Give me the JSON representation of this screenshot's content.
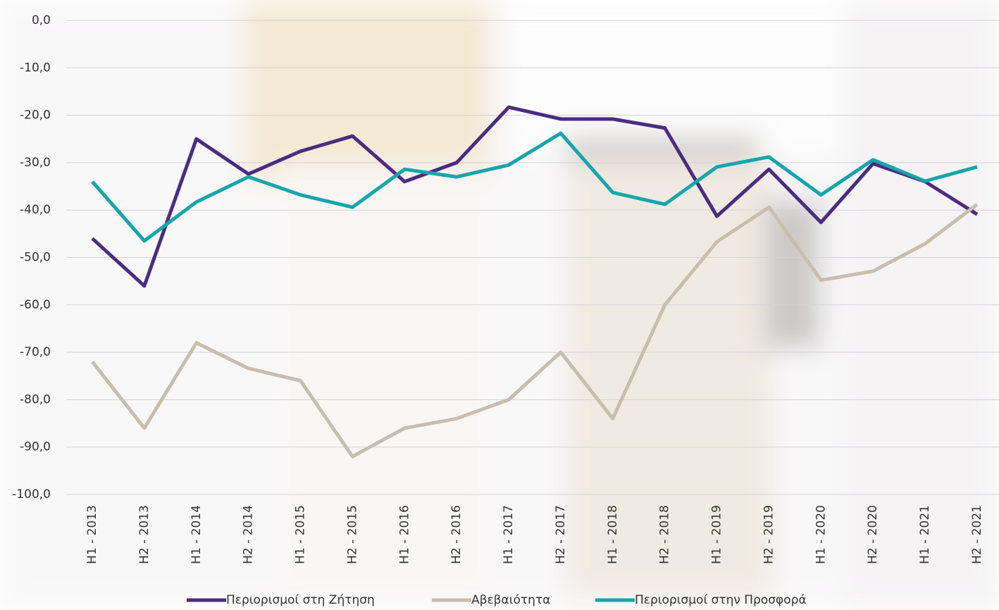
{
  "chart_data": {
    "type": "line",
    "categories": [
      "H1 - 2013",
      "H2 - 2013",
      "H1 - 2014",
      "H2 - 2014",
      "H1 - 2015",
      "H2 - 2015",
      "H1 - 2016",
      "H2 - 2016",
      "H1 - 2017",
      "H2 - 2017",
      "H1 - 2018",
      "H2 - 2018",
      "H1 - 2019",
      "H2 - 2019",
      "H1 - 2020",
      "H2 - 2020",
      "H1 - 2021",
      "H2 - 2021"
    ],
    "series": [
      {
        "name": "Περιορισμοί στη Ζήτηση",
        "color": "#4b2c7f",
        "values": [
          -46,
          -56,
          -25,
          -32.4,
          -27.6,
          -24.4,
          -34,
          -30,
          -18.3,
          -20.8,
          -20.8,
          -22.7,
          -41.3,
          -31.4,
          -42.6,
          -30.2,
          -34,
          -40.9
        ]
      },
      {
        "name": "Αβεβαιότητα",
        "color": "#c8beae",
        "values": [
          -72,
          -86,
          -68,
          -73.4,
          -76,
          -92,
          -86,
          -84,
          -80,
          -70,
          -84,
          -60,
          -46.7,
          -39.4,
          -54.8,
          -52.9,
          -47.1,
          -38.8
        ]
      },
      {
        "name": "Περιορισμοί στην Προσφορά",
        "color": "#17a5ac",
        "values": [
          -34,
          -46.5,
          -38.3,
          -33,
          -36.8,
          -39.4,
          -31.4,
          -33,
          -30.5,
          -23.8,
          -36.3,
          -38.8,
          -30.9,
          -28.8,
          -36.8,
          -29.4,
          -33.9,
          -30.9
        ]
      }
    ],
    "ylim": [
      -100,
      0
    ],
    "yticks": [
      {
        "value": 0,
        "label": "0,0"
      },
      {
        "value": -10,
        "label": "-10,0"
      },
      {
        "value": -20,
        "label": "-20,0"
      },
      {
        "value": -30,
        "label": "-30,0"
      },
      {
        "value": -40,
        "label": "-40,0"
      },
      {
        "value": -50,
        "label": "-50,0"
      },
      {
        "value": -60,
        "label": "-60,0"
      },
      {
        "value": -70,
        "label": "-70,0"
      },
      {
        "value": -80,
        "label": "-80,0"
      },
      {
        "value": -90,
        "label": "-90,0"
      },
      {
        "value": -100,
        "label": "-100,0"
      }
    ],
    "grid": true,
    "legend": "bottom"
  }
}
